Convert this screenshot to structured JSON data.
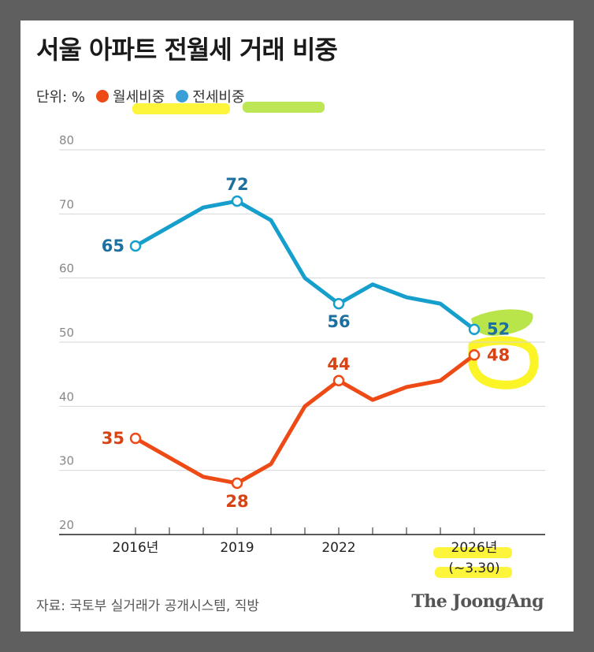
{
  "title": "서울 아파트 전월세 거래 비중",
  "unit_label": "단위: %",
  "source": "자료: 국토부 실거래가 공개시스템, 직방",
  "brand": "The JoongAng",
  "colors": {
    "monthly": "#ee4a16",
    "jeonse": "#169fcc",
    "monthly_label": "#d84315",
    "jeonse_label": "#1c6f9e",
    "highlight_yellow": "#fbf31a",
    "highlight_green": "#b2e236"
  },
  "chart_data": {
    "type": "line",
    "title": "서울 아파트 전월세 거래 비중",
    "ylabel": "단위: %",
    "ylim": [
      20,
      80
    ],
    "yticks": [
      "20",
      "30",
      "40",
      "50",
      "60",
      "70",
      "80"
    ],
    "x": [
      2016,
      2017,
      2018,
      2019,
      2020,
      2021,
      2022,
      2023,
      2024,
      2025,
      2026
    ],
    "xticks": [
      {
        "x": 2016,
        "label": "2016년"
      },
      {
        "x": 2019,
        "label": "2019"
      },
      {
        "x": 2022,
        "label": "2022"
      },
      {
        "x": 2026,
        "label": "2026년",
        "sublabel": "(~3.30)"
      }
    ],
    "grid": true,
    "legend": "top-left",
    "series": [
      {
        "name": "월세비중",
        "color": "#ee4a16",
        "values": [
          35,
          32,
          29,
          28,
          31,
          40,
          44,
          41,
          43,
          44,
          48
        ],
        "labeled": [
          {
            "x": 2016,
            "text": "35",
            "pos": "left"
          },
          {
            "x": 2019,
            "text": "28",
            "pos": "below"
          },
          {
            "x": 2022,
            "text": "44",
            "pos": "above"
          },
          {
            "x": 2026,
            "text": "48",
            "pos": "right"
          }
        ]
      },
      {
        "name": "전세비중",
        "color": "#169fcc",
        "values": [
          65,
          68,
          71,
          72,
          69,
          60,
          56,
          59,
          57,
          56,
          52
        ],
        "labeled": [
          {
            "x": 2016,
            "text": "65",
            "pos": "left"
          },
          {
            "x": 2019,
            "text": "72",
            "pos": "above"
          },
          {
            "x": 2022,
            "text": "56",
            "pos": "below"
          },
          {
            "x": 2026,
            "text": "52",
            "pos": "right"
          }
        ]
      }
    ]
  }
}
